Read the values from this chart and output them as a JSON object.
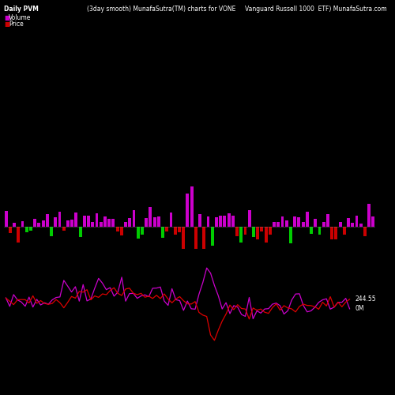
{
  "title_left": "Daily PVM",
  "title_center": "(3day smooth) MunafaSutra(TM) charts for VONE",
  "title_right": "Vanguard Russell 1000  ETF) MunafaSutra.com",
  "legend_volume": "Volume",
  "legend_price": "Price",
  "label_0m": "0M",
  "label_price": "244.55",
  "background_color": "#000000",
  "bar_color_up": "#cc00cc",
  "bar_color_down": "#00cc00",
  "bar_color_red": "#cc0000",
  "line_color_purple": "#cc00cc",
  "line_color_red": "#dd0000",
  "n_bars": 90,
  "figsize": [
    5.0,
    5.0
  ],
  "dpi": 100
}
